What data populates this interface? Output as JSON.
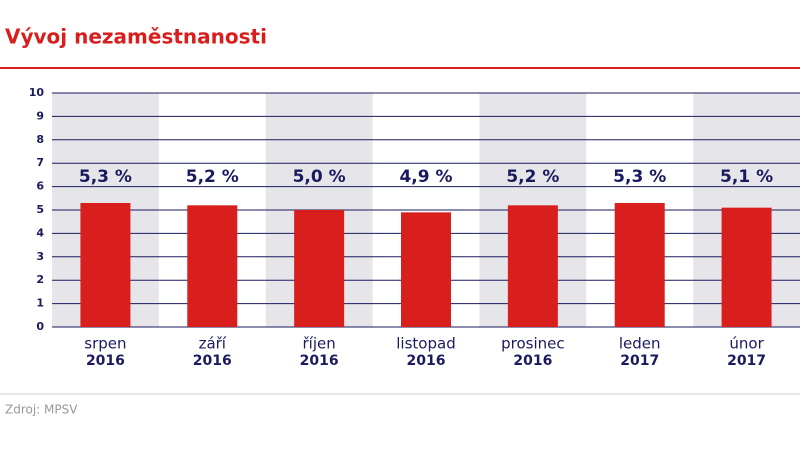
{
  "chart_data": {
    "type": "bar",
    "title": "Vývoj nezaměstnanosti",
    "categories": [
      "srpen",
      "září",
      "říjen",
      "listopad",
      "prosinec",
      "leden",
      "únor"
    ],
    "category_years": [
      "2016",
      "2016",
      "2016",
      "2016",
      "2016",
      "2017",
      "2017"
    ],
    "values": [
      5.3,
      5.2,
      5.0,
      4.9,
      5.2,
      5.3,
      5.1
    ],
    "value_labels": [
      "5,3 %",
      "5,2 %",
      "5,0 %",
      "4,9 %",
      "5,2 %",
      "5,3 %",
      "5,1 %"
    ],
    "color": "#d91e1e",
    "ylim": [
      0,
      10
    ],
    "yticks": [
      0,
      1,
      2,
      3,
      4,
      5,
      6,
      7,
      8,
      9,
      10
    ],
    "grid": true,
    "source": "Zdroj: MPSV"
  }
}
